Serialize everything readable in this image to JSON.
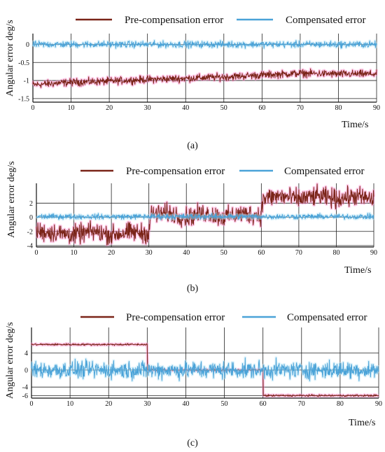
{
  "figure": {
    "captions": [
      "(a)",
      "(b)",
      "(c)"
    ]
  },
  "colors": {
    "pre": "#7a2418",
    "comp": "#4aa3d8",
    "pre_glow": "#ff88cc",
    "comp_glow": "#b7e4f6"
  },
  "chart_data": [
    {
      "type": "line",
      "title": "",
      "ylabel": "Angular error deg/s",
      "xlabel": "Time/s",
      "x_ticks": [
        0,
        10,
        20,
        30,
        40,
        50,
        60,
        70,
        80,
        90
      ],
      "y_ticks": [
        0,
        -0.5,
        -1,
        -1.5
      ],
      "y_tick_labels": [
        "0",
        "-0.5",
        "-1",
        "-1.5"
      ],
      "xlim": [
        0,
        90
      ],
      "ylim": [
        -1.6,
        0.3
      ],
      "grid": true,
      "legend": "top",
      "legend_entries": [
        "Pre-compensation error",
        "Compensated error"
      ],
      "series": [
        {
          "name": "Pre-compensation error",
          "x": [
            0,
            10,
            20,
            30,
            40,
            50,
            60,
            70,
            80,
            90
          ],
          "y": [
            -1.12,
            -1.05,
            -1.02,
            -0.97,
            -0.94,
            -0.9,
            -0.85,
            -0.8,
            -0.82,
            -0.82
          ]
        },
        {
          "name": "Compensated error",
          "x": [
            0,
            10,
            20,
            30,
            40,
            50,
            60,
            70,
            80,
            90
          ],
          "y": [
            0,
            0,
            0,
            0,
            0,
            0,
            0,
            0,
            0,
            0
          ]
        }
      ]
    },
    {
      "type": "line",
      "title": "",
      "ylabel": "Angular error deg/s",
      "xlabel": "Time/s",
      "x_ticks": [
        0,
        10,
        20,
        30,
        40,
        50,
        60,
        70,
        80,
        90
      ],
      "y_ticks": [
        2,
        0,
        -2,
        -4
      ],
      "y_tick_labels": [
        "2",
        "0",
        "-2",
        "-4"
      ],
      "xlim": [
        0,
        90
      ],
      "ylim": [
        -4.2,
        4.8
      ],
      "grid": true,
      "legend": "top",
      "legend_entries": [
        "Pre-compensation error",
        "Compensated error"
      ],
      "series": [
        {
          "name": "Pre-compensation error",
          "x": [
            0,
            5,
            10,
            15,
            20,
            25,
            30,
            30.5,
            35,
            40,
            45,
            50,
            55,
            60,
            60.5,
            65,
            70,
            75,
            80,
            85,
            90
          ],
          "y": [
            -2.0,
            -2.2,
            -2.5,
            -2.0,
            -2.5,
            -2.1,
            -2.3,
            0.4,
            0.6,
            0.0,
            0.6,
            0.0,
            0.5,
            0.3,
            2.7,
            3.0,
            2.6,
            3.0,
            2.6,
            3.0,
            2.5
          ]
        },
        {
          "name": "Compensated error",
          "x": [
            0,
            10,
            20,
            30,
            40,
            50,
            60,
            70,
            80,
            90
          ],
          "y": [
            0.1,
            0.1,
            0.1,
            0.1,
            0.1,
            0.1,
            0.1,
            0.1,
            0.1,
            0.1
          ]
        }
      ]
    },
    {
      "type": "line",
      "title": "",
      "ylabel": "Angular error deg/s",
      "xlabel": "Time/s",
      "x_ticks": [
        0,
        10,
        20,
        30,
        40,
        50,
        60,
        70,
        80,
        90
      ],
      "y_ticks": [
        4,
        0,
        -4,
        -6
      ],
      "y_tick_labels": [
        "4",
        "0",
        "-4",
        "-6"
      ],
      "xlim": [
        0,
        90
      ],
      "ylim": [
        -6.6,
        10.0
      ],
      "grid": true,
      "legend": "top",
      "legend_entries": [
        "Pre-compensation error",
        "Compensated error"
      ],
      "series": [
        {
          "name": "Pre-compensation error",
          "x": [
            0,
            30,
            30,
            60,
            60,
            90
          ],
          "y": [
            6,
            6,
            0,
            0,
            -6,
            -6
          ]
        },
        {
          "name": "Compensated error",
          "x": [
            0,
            10,
            20,
            30,
            40,
            50,
            60,
            70,
            80,
            90
          ],
          "y": [
            0,
            0,
            0,
            0,
            0,
            0,
            0,
            0,
            0,
            0
          ]
        }
      ]
    }
  ]
}
